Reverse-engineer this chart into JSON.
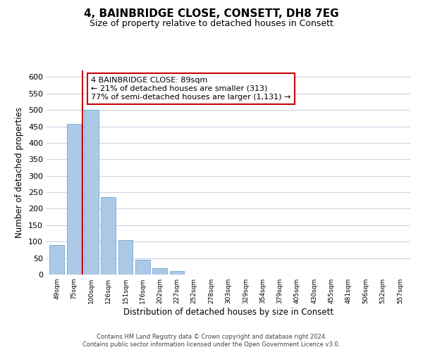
{
  "title": "4, BAINBRIDGE CLOSE, CONSETT, DH8 7EG",
  "subtitle": "Size of property relative to detached houses in Consett",
  "xlabel": "Distribution of detached houses by size in Consett",
  "ylabel": "Number of detached properties",
  "categories": [
    "49sqm",
    "75sqm",
    "100sqm",
    "126sqm",
    "151sqm",
    "176sqm",
    "202sqm",
    "227sqm",
    "252sqm",
    "278sqm",
    "303sqm",
    "329sqm",
    "354sqm",
    "379sqm",
    "405sqm",
    "430sqm",
    "455sqm",
    "481sqm",
    "506sqm",
    "532sqm",
    "557sqm"
  ],
  "values": [
    90,
    457,
    500,
    236,
    105,
    45,
    20,
    10,
    1,
    0,
    1,
    0,
    0,
    0,
    0,
    0,
    0,
    0,
    1,
    0,
    1
  ],
  "bar_color": "#adc9e8",
  "bar_edge_color": "#6aaad4",
  "vline_x_index": 2,
  "vline_color": "#cc0000",
  "annotation_line1": "4 BAINBRIDGE CLOSE: 89sqm",
  "annotation_line2": "← 21% of detached houses are smaller (313)",
  "annotation_line3": "77% of semi-detached houses are larger (1,131) →",
  "annotation_box_color": "#ffffff",
  "annotation_box_edge_color": "#cc0000",
  "ylim": [
    0,
    620
  ],
  "yticks": [
    0,
    50,
    100,
    150,
    200,
    250,
    300,
    350,
    400,
    450,
    500,
    550,
    600
  ],
  "footer_line1": "Contains HM Land Registry data © Crown copyright and database right 2024.",
  "footer_line2": "Contains public sector information licensed under the Open Government Licence v3.0.",
  "title_fontsize": 11,
  "subtitle_fontsize": 9,
  "background_color": "#ffffff",
  "grid_color": "#c8d4e4"
}
